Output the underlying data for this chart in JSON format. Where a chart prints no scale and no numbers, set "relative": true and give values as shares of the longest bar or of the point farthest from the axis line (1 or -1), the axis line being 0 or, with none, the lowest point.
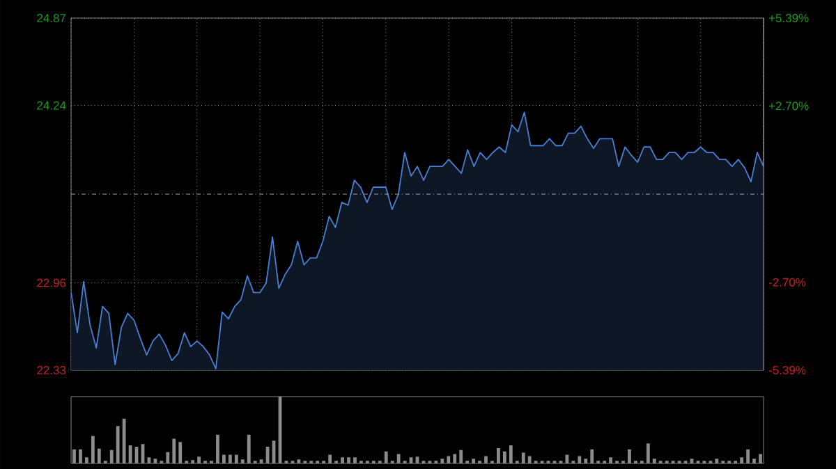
{
  "chart_data": [
    {
      "type": "area",
      "categories": [
        null,
        null,
        null,
        null,
        null,
        null,
        null,
        null,
        null,
        null,
        null,
        null,
        null,
        null,
        null,
        null,
        null,
        null,
        null,
        null,
        null,
        null,
        null,
        null,
        null,
        null,
        null,
        null,
        null,
        null,
        null,
        null,
        null,
        null,
        null,
        null,
        null,
        null,
        null,
        null,
        null,
        null,
        null,
        null,
        null,
        null,
        null,
        null,
        null,
        null,
        null,
        null,
        null,
        null,
        null,
        null,
        null,
        null,
        null,
        null,
        null,
        null,
        null,
        null,
        null,
        null,
        null,
        null,
        null,
        null,
        null,
        null,
        null,
        null,
        null,
        null,
        null,
        null,
        null,
        null,
        null,
        null,
        null,
        null,
        null,
        null,
        null,
        null,
        null,
        null,
        null,
        null,
        null,
        null,
        null,
        null,
        null,
        null,
        null,
        null,
        null,
        null,
        null,
        null,
        null,
        null,
        null,
        null,
        null,
        null,
        null
      ],
      "ylim": [
        22.33,
        24.87
      ],
      "yticks": [
        {
          "value": 22.33,
          "label": "22.33"
        },
        {
          "value": 22.96,
          "label": "22.96"
        },
        {
          "value": 24.24,
          "label": "24.24"
        },
        {
          "value": 24.87,
          "label": "24.87"
        }
      ],
      "y2lim": [
        -5.39,
        5.39
      ],
      "y2ticks": [
        {
          "value": -5.39,
          "label": "-5.39%"
        },
        {
          "value": -2.7,
          "label": "-2.70%"
        },
        {
          "value": 2.7,
          "label": "+2.70%"
        },
        {
          "value": 5.39,
          "label": "+5.39%"
        }
      ],
      "grid": true,
      "tick_labels": "y",
      "ref_lines": [
        {
          "axis": "y",
          "value": 23.6,
          "line_style": "dashed"
        }
      ],
      "series": [
        {
          "color": "#4a7fd4",
          "values": [
            22.89,
            22.6,
            22.97,
            22.66,
            22.49,
            22.79,
            22.74,
            22.37,
            22.64,
            22.74,
            22.69,
            22.56,
            22.44,
            22.54,
            22.59,
            22.51,
            22.4,
            22.45,
            22.6,
            22.5,
            22.54,
            22.5,
            22.44,
            22.34,
            22.75,
            22.7,
            22.79,
            22.84,
            23.01,
            22.89,
            22.89,
            22.96,
            23.29,
            22.92,
            23.02,
            23.09,
            23.26,
            23.09,
            23.14,
            23.14,
            23.26,
            23.44,
            23.36,
            23.54,
            23.52,
            23.7,
            23.65,
            23.54,
            23.65,
            23.65,
            23.65,
            23.49,
            23.6,
            23.9,
            23.73,
            23.8,
            23.7,
            23.8,
            23.8,
            23.8,
            23.85,
            23.8,
            23.75,
            23.92,
            23.8,
            23.9,
            23.85,
            23.9,
            23.94,
            23.9,
            24.1,
            24.05,
            24.19,
            23.95,
            23.95,
            23.95,
            24.0,
            23.95,
            23.95,
            24.04,
            24.04,
            24.09,
            24.0,
            23.93,
            24.0,
            24.0,
            24.0,
            23.8,
            23.94,
            23.88,
            23.83,
            23.94,
            23.94,
            23.85,
            23.85,
            23.9,
            23.9,
            23.85,
            23.9,
            23.9,
            23.94,
            23.9,
            23.9,
            23.85,
            23.85,
            23.8,
            23.85,
            23.79,
            23.69,
            23.9,
            23.8
          ]
        }
      ]
    },
    {
      "type": "bar",
      "relative": true,
      "tick_labels": false,
      "color": "#8c8c8c",
      "categories": [
        null,
        null,
        null,
        null,
        null,
        null,
        null,
        null,
        null,
        null,
        null,
        null,
        null,
        null,
        null,
        null,
        null,
        null,
        null,
        null,
        null,
        null,
        null,
        null,
        null,
        null,
        null,
        null,
        null,
        null,
        null,
        null,
        null,
        null,
        null,
        null,
        null,
        null,
        null,
        null,
        null,
        null,
        null,
        null,
        null,
        null,
        null,
        null,
        null,
        null,
        null,
        null,
        null,
        null,
        null,
        null,
        null,
        null,
        null,
        null,
        null,
        null,
        null,
        null,
        null,
        null,
        null,
        null,
        null,
        null,
        null,
        null,
        null,
        null,
        null,
        null,
        null,
        null,
        null,
        null,
        null,
        null,
        null,
        null,
        null,
        null,
        null,
        null,
        null,
        null,
        null,
        null,
        null,
        null,
        null,
        null,
        null,
        null,
        null,
        null,
        null,
        null,
        null,
        null,
        null,
        null,
        null,
        null,
        null,
        null,
        null
      ],
      "values": [
        0.21,
        0.21,
        0.09,
        0.41,
        0.22,
        0.04,
        0.2,
        0.56,
        0.67,
        0.27,
        0.25,
        0.29,
        0.09,
        0.07,
        0.04,
        0.17,
        0.37,
        0.32,
        0.04,
        0.05,
        0.1,
        0.04,
        0.04,
        0.43,
        0.13,
        0.13,
        0.13,
        0.06,
        0.43,
        0.04,
        0.06,
        0.25,
        0.34,
        1,
        0.04,
        0.04,
        0.06,
        0.04,
        0.04,
        0.04,
        0.04,
        0.13,
        0.04,
        0.09,
        0.09,
        0.09,
        0.04,
        0.04,
        0.04,
        0.04,
        0.18,
        0.04,
        0.14,
        0.04,
        0.09,
        0.1,
        0.04,
        0.04,
        0.04,
        0.07,
        0.11,
        0.14,
        0.2,
        0.04,
        0.07,
        0.04,
        0.11,
        0.04,
        0.23,
        0.18,
        0.27,
        0.04,
        0.16,
        0.11,
        0.04,
        0.04,
        0.04,
        0.04,
        0.04,
        0.13,
        0.04,
        0.11,
        0.07,
        0.21,
        0.04,
        0.04,
        0.09,
        0.04,
        0.04,
        0.21,
        0.04,
        0.04,
        0.3,
        0.07,
        0.04,
        0.04,
        0.04,
        0.04,
        0.04,
        0.07,
        0.04,
        0.04,
        0.04,
        0.07,
        0.04,
        0.04,
        0.04,
        0.09,
        0.21,
        0.07,
        0.14
      ]
    }
  ]
}
